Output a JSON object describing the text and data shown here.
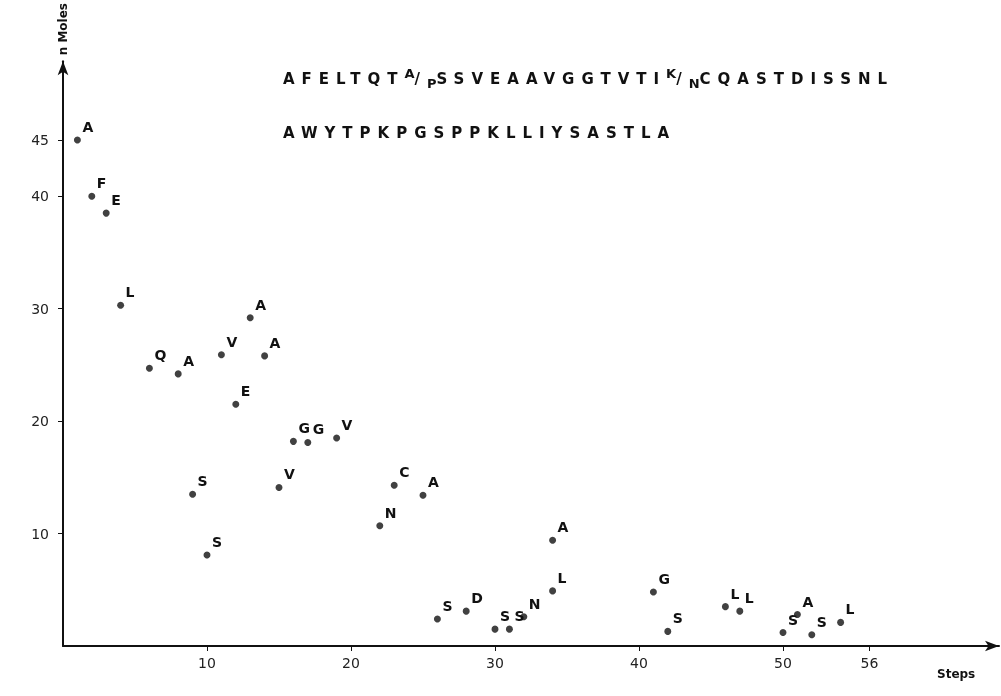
{
  "chart_data": {
    "type": "scatter",
    "xlabel": "Steps",
    "ylabel": "n Moles",
    "x": [
      1,
      2,
      3,
      4,
      6,
      8,
      9,
      10,
      11,
      12,
      13,
      14,
      15,
      16,
      17,
      19,
      22,
      23,
      25,
      26,
      28,
      30,
      31,
      32,
      34,
      34,
      41,
      42,
      46,
      47,
      50,
      51,
      52,
      54
    ],
    "series": [
      {
        "color": "#111111",
        "values": [
          45,
          40,
          38.5,
          30.3,
          24.7,
          24.2,
          13.5,
          8.1,
          25.9,
          21.5,
          29.2,
          25.8,
          14.1,
          18.2,
          18.1,
          18.5,
          10.7,
          14.3,
          13.4,
          2.4,
          3.1,
          1.5,
          1.5,
          2.6,
          9.4,
          4.9,
          4.8,
          1.3,
          3.5,
          3.1,
          1.2,
          2.8,
          1.0,
          2.1
        ]
      }
    ],
    "xlim": [
      0,
      65
    ],
    "xticks": [
      10,
      20,
      30,
      40,
      50,
      56
    ],
    "ylim": [
      0,
      52
    ],
    "yticks": [
      10,
      20,
      30,
      40,
      45
    ],
    "marker": "circle",
    "annotations": [
      "AFELTQT$^{A}$/$_{P}$SSVEAAVGGTVTI$^{K}$/$_{N}$CQASTDISSNL",
      "AWYTPKPGSPPKLLIYSASTLA",
      {
        "text": "A",
        "x": 1,
        "y": 45
      },
      {
        "text": "F",
        "x": 2,
        "y": 40
      },
      {
        "text": "E",
        "x": 3,
        "y": 38.5
      },
      {
        "text": "L",
        "x": 4,
        "y": 30.3
      },
      {
        "text": "Q",
        "x": 6,
        "y": 24.7
      },
      {
        "text": "A",
        "x": 8,
        "y": 24.2
      },
      {
        "text": "S",
        "x": 9,
        "y": 13.5
      },
      {
        "text": "S",
        "x": 10,
        "y": 8.1
      },
      {
        "text": "V",
        "x": 11,
        "y": 25.9
      },
      {
        "text": "E",
        "x": 12,
        "y": 21.5
      },
      {
        "text": "A",
        "x": 13,
        "y": 29.2
      },
      {
        "text": "A",
        "x": 14,
        "y": 25.8
      },
      {
        "text": "V",
        "x": 15,
        "y": 14.1
      },
      {
        "text": "G",
        "x": 16,
        "y": 18.2
      },
      {
        "text": "G",
        "x": 17,
        "y": 18.1
      },
      {
        "text": "V",
        "x": 19,
        "y": 18.5
      },
      {
        "text": "N",
        "x": 22,
        "y": 10.7
      },
      {
        "text": "C",
        "x": 23,
        "y": 14.3
      },
      {
        "text": "A",
        "x": 25,
        "y": 13.4
      },
      {
        "text": "S",
        "x": 26,
        "y": 2.4
      },
      {
        "text": "D",
        "x": 28,
        "y": 3.1
      },
      {
        "text": "S",
        "x": 30,
        "y": 1.5
      },
      {
        "text": "S",
        "x": 31,
        "y": 1.5
      },
      {
        "text": "N",
        "x": 32,
        "y": 2.6
      },
      {
        "text": "A",
        "x": 34,
        "y": 9.4
      },
      {
        "text": "L",
        "x": 34,
        "y": 4.9
      },
      {
        "text": "G",
        "x": 41,
        "y": 4.8
      },
      {
        "text": "S",
        "x": 42,
        "y": 1.3
      },
      {
        "text": "L",
        "x": 46,
        "y": 3.5
      },
      {
        "text": "L",
        "x": 47,
        "y": 3.1
      },
      {
        "text": "S",
        "x": 50,
        "y": 1.2
      },
      {
        "text": "A",
        "x": 51,
        "y": 2.8
      },
      {
        "text": "S",
        "x": 52,
        "y": 1.0
      },
      {
        "text": "L",
        "x": 54,
        "y": 2.1
      }
    ]
  }
}
